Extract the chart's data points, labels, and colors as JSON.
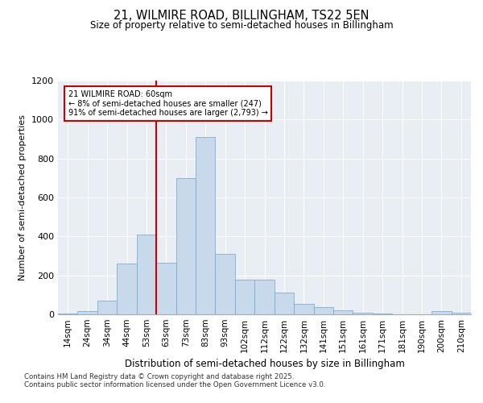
{
  "title": "21, WILMIRE ROAD, BILLINGHAM, TS22 5EN",
  "subtitle": "Size of property relative to semi-detached houses in Billingham",
  "xlabel": "Distribution of semi-detached houses by size in Billingham",
  "ylabel": "Number of semi-detached properties",
  "categories": [
    "14sqm",
    "24sqm",
    "34sqm",
    "44sqm",
    "53sqm",
    "63sqm",
    "73sqm",
    "83sqm",
    "93sqm",
    "102sqm",
    "112sqm",
    "122sqm",
    "132sqm",
    "141sqm",
    "151sqm",
    "161sqm",
    "171sqm",
    "181sqm",
    "190sqm",
    "200sqm",
    "210sqm"
  ],
  "values": [
    3,
    18,
    70,
    260,
    410,
    265,
    700,
    910,
    310,
    180,
    180,
    110,
    55,
    38,
    22,
    8,
    3,
    0,
    0,
    15,
    8
  ],
  "bar_color": "#c9d9ec",
  "bar_edge_color": "#7ab0d4",
  "annotation_title": "21 WILMIRE ROAD: 60sqm",
  "annotation_line1": "← 8% of semi-detached houses are smaller (247)",
  "annotation_line2": "91% of semi-detached houses are larger (2,793) →",
  "annotation_box_color": "#ffffff",
  "annotation_box_edge_color": "#cc0000",
  "vline_color": "#cc0000",
  "vline_bin_index": 5,
  "ylim": [
    0,
    1200
  ],
  "yticks": [
    0,
    200,
    400,
    600,
    800,
    1000,
    1200
  ],
  "background_color": "#e8eef4",
  "footnote1": "Contains HM Land Registry data © Crown copyright and database right 2025.",
  "footnote2": "Contains public sector information licensed under the Open Government Licence v3.0."
}
